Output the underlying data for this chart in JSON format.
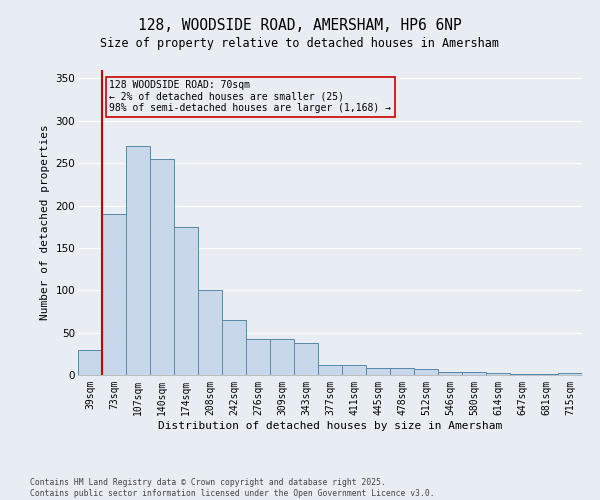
{
  "title_line1": "128, WOODSIDE ROAD, AMERSHAM, HP6 6NP",
  "title_line2": "Size of property relative to detached houses in Amersham",
  "xlabel": "Distribution of detached houses by size in Amersham",
  "ylabel": "Number of detached properties",
  "bar_values": [
    30,
    190,
    270,
    255,
    175,
    100,
    65,
    43,
    42,
    38,
    12,
    12,
    8,
    8,
    7,
    4,
    3,
    2,
    1,
    1,
    2
  ],
  "categories": [
    "39sqm",
    "73sqm",
    "107sqm",
    "140sqm",
    "174sqm",
    "208sqm",
    "242sqm",
    "276sqm",
    "309sqm",
    "343sqm",
    "377sqm",
    "411sqm",
    "445sqm",
    "478sqm",
    "512sqm",
    "546sqm",
    "580sqm",
    "614sqm",
    "647sqm",
    "681sqm",
    "715sqm"
  ],
  "bar_color": "#c8d8ea",
  "bar_edge_color": "#5588aa",
  "background_color": "#e8edf4",
  "grid_color": "#ffffff",
  "ylim": [
    0,
    360
  ],
  "yticks": [
    0,
    50,
    100,
    150,
    200,
    250,
    300,
    350
  ],
  "property_line_color": "#cc0000",
  "annotation_text": "128 WOODSIDE ROAD: 70sqm\n← 2% of detached houses are smaller (25)\n98% of semi-detached houses are larger (1,168) →",
  "annotation_box_color": "#cc0000",
  "footer_line1": "Contains HM Land Registry data © Crown copyright and database right 2025.",
  "footer_line2": "Contains public sector information licensed under the Open Government Licence v3.0."
}
